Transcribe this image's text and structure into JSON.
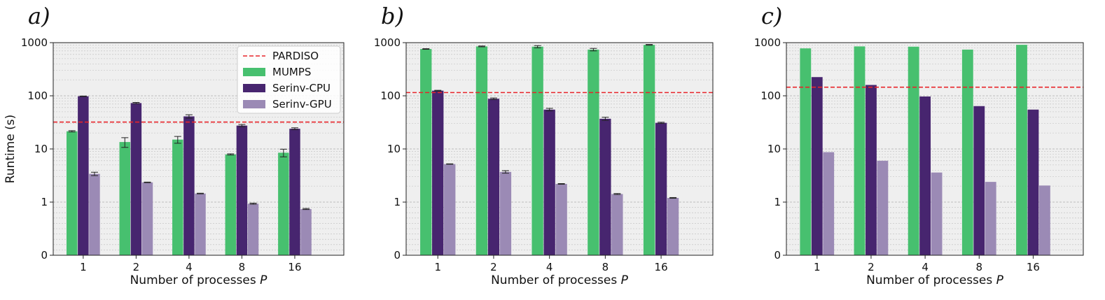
{
  "colors": {
    "pardiso": "#e8242a",
    "mumps": "#47c06f",
    "serinv_cpu": "#47256f",
    "serinv_gpu": "#9b8ab5",
    "plot_bg": "#efefef",
    "grid": "#bdbdbd"
  },
  "chart_data": [
    {
      "type": "bar",
      "panel_label": "a)",
      "categories": [
        "1",
        "2",
        "4",
        "8",
        "16"
      ],
      "xlabel": "Number of processes",
      "xlabel_var": "P",
      "ylabel": "Runtime (s)",
      "yscale": "symlog",
      "ylim": [
        0,
        1000
      ],
      "yticks": [
        "0",
        "1",
        "10",
        "100",
        "1000"
      ],
      "grid": true,
      "legend_position": "top-right",
      "legend": [
        "PARDISO",
        "MUMPS",
        "Serinv-CPU",
        "Serinv-GPU"
      ],
      "reference_line": {
        "name": "PARDISO",
        "value": 32
      },
      "series": [
        {
          "name": "MUMPS",
          "values": [
            21.5,
            13.5,
            15,
            7.9,
            8.5
          ],
          "errors": [
            0.6,
            2.8,
            2.2,
            0.2,
            1.4
          ]
        },
        {
          "name": "Serinv-CPU",
          "values": [
            98,
            73,
            41,
            27.5,
            24
          ],
          "errors": [
            1,
            2,
            3,
            1.3,
            1
          ]
        },
        {
          "name": "Serinv-GPU",
          "values": [
            3.4,
            2.35,
            1.45,
            0.97,
            0.87
          ],
          "errors": [
            0.25,
            0.03,
            0.02,
            0.01,
            0.01
          ]
        }
      ]
    },
    {
      "type": "bar",
      "panel_label": "b)",
      "categories": [
        "1",
        "2",
        "4",
        "8",
        "16"
      ],
      "xlabel": "Number of processes",
      "xlabel_var": "P",
      "ylabel": "",
      "yscale": "symlog",
      "ylim": [
        0,
        1000
      ],
      "yticks": [
        "0",
        "1",
        "10",
        "100",
        "1000"
      ],
      "grid": true,
      "reference_line": {
        "name": "PARDISO",
        "value": 115
      },
      "series": [
        {
          "name": "MUMPS",
          "values": [
            760,
            850,
            840,
            740,
            910
          ],
          "errors": [
            10,
            15,
            40,
            40,
            15
          ]
        },
        {
          "name": "Serinv-CPU",
          "values": [
            125,
            88,
            55,
            37,
            31
          ],
          "errors": [
            2,
            3,
            3,
            2.5,
            0.8
          ]
        },
        {
          "name": "Serinv-GPU",
          "values": [
            5.2,
            3.7,
            2.2,
            1.42,
            1.2
          ],
          "errors": [
            0.05,
            0.2,
            0.03,
            0.03,
            0.02
          ]
        }
      ]
    },
    {
      "type": "bar",
      "panel_label": "c)",
      "categories": [
        "1",
        "2",
        "4",
        "8",
        "16"
      ],
      "xlabel": "Number of processes",
      "xlabel_var": "P",
      "ylabel": "",
      "yscale": "symlog",
      "ylim": [
        0,
        1000
      ],
      "yticks": [
        "0",
        "1",
        "10",
        "100",
        "1000"
      ],
      "grid": true,
      "reference_line": {
        "name": "PARDISO",
        "value": 145
      },
      "series": [
        {
          "name": "MUMPS",
          "values": [
            780,
            850,
            840,
            740,
            910
          ]
        },
        {
          "name": "Serinv-CPU",
          "values": [
            225,
            160,
            97,
            64,
            55
          ]
        },
        {
          "name": "Serinv-GPU",
          "values": [
            8.7,
            6,
            3.6,
            2.4,
            2.05
          ]
        }
      ]
    }
  ]
}
